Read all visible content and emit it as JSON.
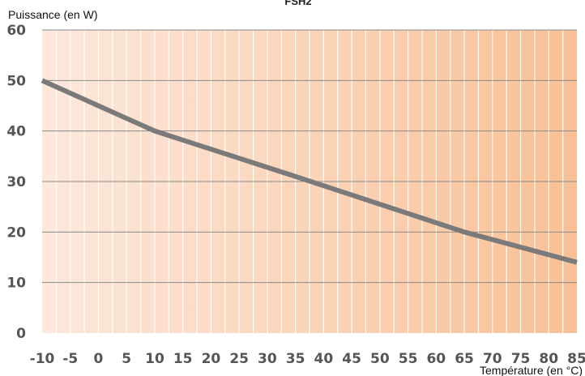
{
  "chart_data": {
    "type": "line",
    "title": "FSH2",
    "xlabel": "Température (en °C)",
    "ylabel": "Puissance (en W)",
    "xlim": [
      -10,
      85
    ],
    "ylim": [
      0,
      60
    ],
    "x_ticks": [
      -10,
      -5,
      0,
      5,
      10,
      15,
      20,
      25,
      30,
      35,
      40,
      45,
      50,
      55,
      60,
      65,
      70,
      75,
      80,
      85
    ],
    "y_ticks": [
      0,
      10,
      20,
      30,
      40,
      50,
      60
    ],
    "grid": true,
    "series": [
      {
        "x": [
          -10,
          10,
          35,
          65,
          85
        ],
        "y": [
          50,
          40,
          31,
          20,
          14
        ]
      }
    ],
    "colors": {
      "line": "#7a7a7a",
      "background_start": "#fde8dc",
      "background_end": "#f8c095",
      "gridline": "#ffffff",
      "hgridline": "#8a8a8a"
    }
  }
}
